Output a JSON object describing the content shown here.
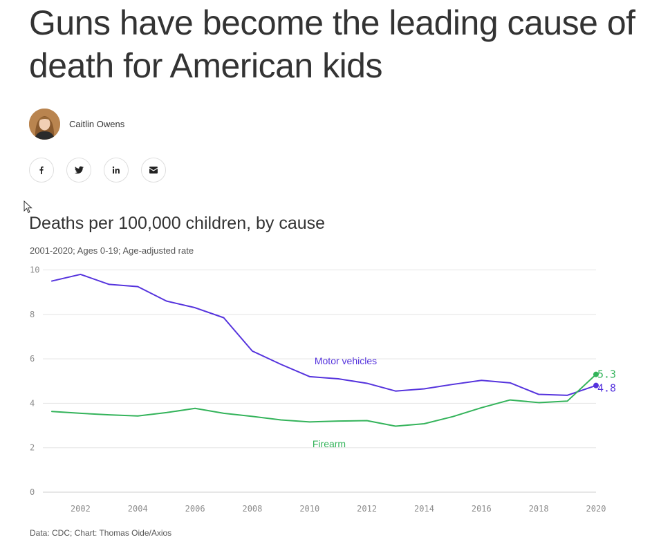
{
  "article": {
    "headline": "Guns have become the leading cause of death for American kids",
    "author": "Caitlin Owens"
  },
  "share": [
    {
      "name": "facebook",
      "icon": "facebook-icon"
    },
    {
      "name": "twitter",
      "icon": "twitter-icon"
    },
    {
      "name": "linkedin",
      "icon": "linkedin-icon"
    },
    {
      "name": "email",
      "icon": "email-icon"
    }
  ],
  "chart_data": {
    "type": "line",
    "title": "Deaths per 100,000 children, by cause",
    "subtitle": "2001-2020; Ages 0-19; Age-adjusted rate",
    "source": "Data: CDC; Chart: Thomas Oide/Axios",
    "xlim": [
      2001,
      2020
    ],
    "ylim": [
      0,
      10
    ],
    "x_ticks": [
      2002,
      2004,
      2006,
      2008,
      2010,
      2012,
      2014,
      2016,
      2018,
      2020
    ],
    "y_ticks": [
      0,
      2,
      4,
      6,
      8,
      10
    ],
    "grid": true,
    "x": [
      2001,
      2002,
      2003,
      2004,
      2005,
      2006,
      2007,
      2008,
      2009,
      2010,
      2011,
      2012,
      2013,
      2014,
      2015,
      2016,
      2017,
      2018,
      2019,
      2020
    ],
    "series": [
      {
        "name": "Motor vehicles",
        "color": "#5533dd",
        "values": [
          9.5,
          9.8,
          9.35,
          9.25,
          8.6,
          8.3,
          7.85,
          6.35,
          5.75,
          5.2,
          5.1,
          4.9,
          4.55,
          4.65,
          4.85,
          5.03,
          4.92,
          4.4,
          4.36,
          4.8
        ],
        "end_label": "4.8"
      },
      {
        "name": "Firearm",
        "color": "#33b35a",
        "values": [
          3.63,
          3.55,
          3.48,
          3.43,
          3.58,
          3.77,
          3.55,
          3.41,
          3.25,
          3.16,
          3.2,
          3.22,
          2.97,
          3.08,
          3.4,
          3.8,
          4.15,
          4.03,
          4.1,
          5.3
        ],
        "end_label": "5.3"
      }
    ]
  }
}
